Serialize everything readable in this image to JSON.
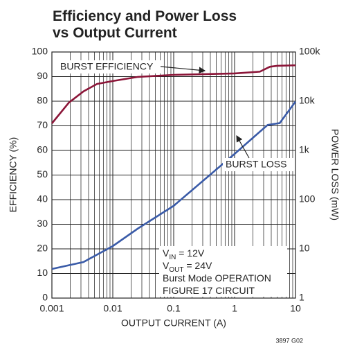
{
  "chart_data": {
    "type": "line",
    "title": [
      "Efficiency and Power Loss",
      "vs Output Current"
    ],
    "xlabel": "OUTPUT CURRENT (A)",
    "ylabel": "EFFICIENCY (%)",
    "y2label": "POWER LOSS (mW)",
    "xscale": "log",
    "y2scale": "log",
    "grid": true,
    "xlim": [
      0.001,
      10
    ],
    "xticks": [
      0.001,
      0.01,
      0.1,
      1,
      10
    ],
    "x_minor_ticks": [
      0.002,
      0.003,
      0.004,
      0.005,
      0.006,
      0.007,
      0.008,
      0.009,
      0.02,
      0.03,
      0.04,
      0.05,
      0.06,
      0.07,
      0.08,
      0.09,
      0.2,
      0.3,
      0.4,
      0.5,
      0.6,
      0.7,
      0.8,
      0.9,
      2,
      3,
      4,
      5,
      6,
      7,
      8,
      9
    ],
    "ylim": [
      0,
      100
    ],
    "yticks": [
      0,
      10,
      20,
      30,
      40,
      50,
      60,
      70,
      80,
      90,
      100
    ],
    "y2lim": [
      1,
      100000
    ],
    "y2ticks": [
      1,
      10,
      100,
      {
        "value": 1000,
        "label": "1k"
      },
      {
        "value": 10000,
        "label": "10k"
      },
      {
        "value": 100000,
        "label": "100k"
      }
    ],
    "series": [
      {
        "name": "BURST EFFICIENCY",
        "color": "#8b1538",
        "x": [
          0.001,
          0.0019,
          0.0033,
          0.0055,
          0.01,
          0.026,
          0.1,
          1,
          2.6,
          3.8,
          5,
          10
        ],
        "values": [
          71,
          79.4,
          84,
          87,
          88.2,
          89.9,
          90.7,
          91.3,
          92,
          94,
          94.4,
          94.6
        ]
      },
      {
        "name": "BURST LOSS",
        "color": "#3a5ba8",
        "axis": "y2",
        "x": [
          0.001,
          0.0033,
          0.01,
          0.026,
          0.1,
          1,
          2.6,
          3.5,
          5.5,
          10
        ],
        "values": [
          3.9,
          5.4,
          11.4,
          26,
          75,
          850,
          2400,
          3300,
          3600,
          9800
        ]
      }
    ],
    "annotation": [
      [
        "V",
        "IN",
        " = 12V"
      ],
      [
        "V",
        "OUT",
        " = 24V"
      ],
      [
        "Burst Mode OPERATION"
      ],
      [
        "FIGURE 17 CIRCUIT"
      ]
    ],
    "footnote": "3897 G02"
  }
}
